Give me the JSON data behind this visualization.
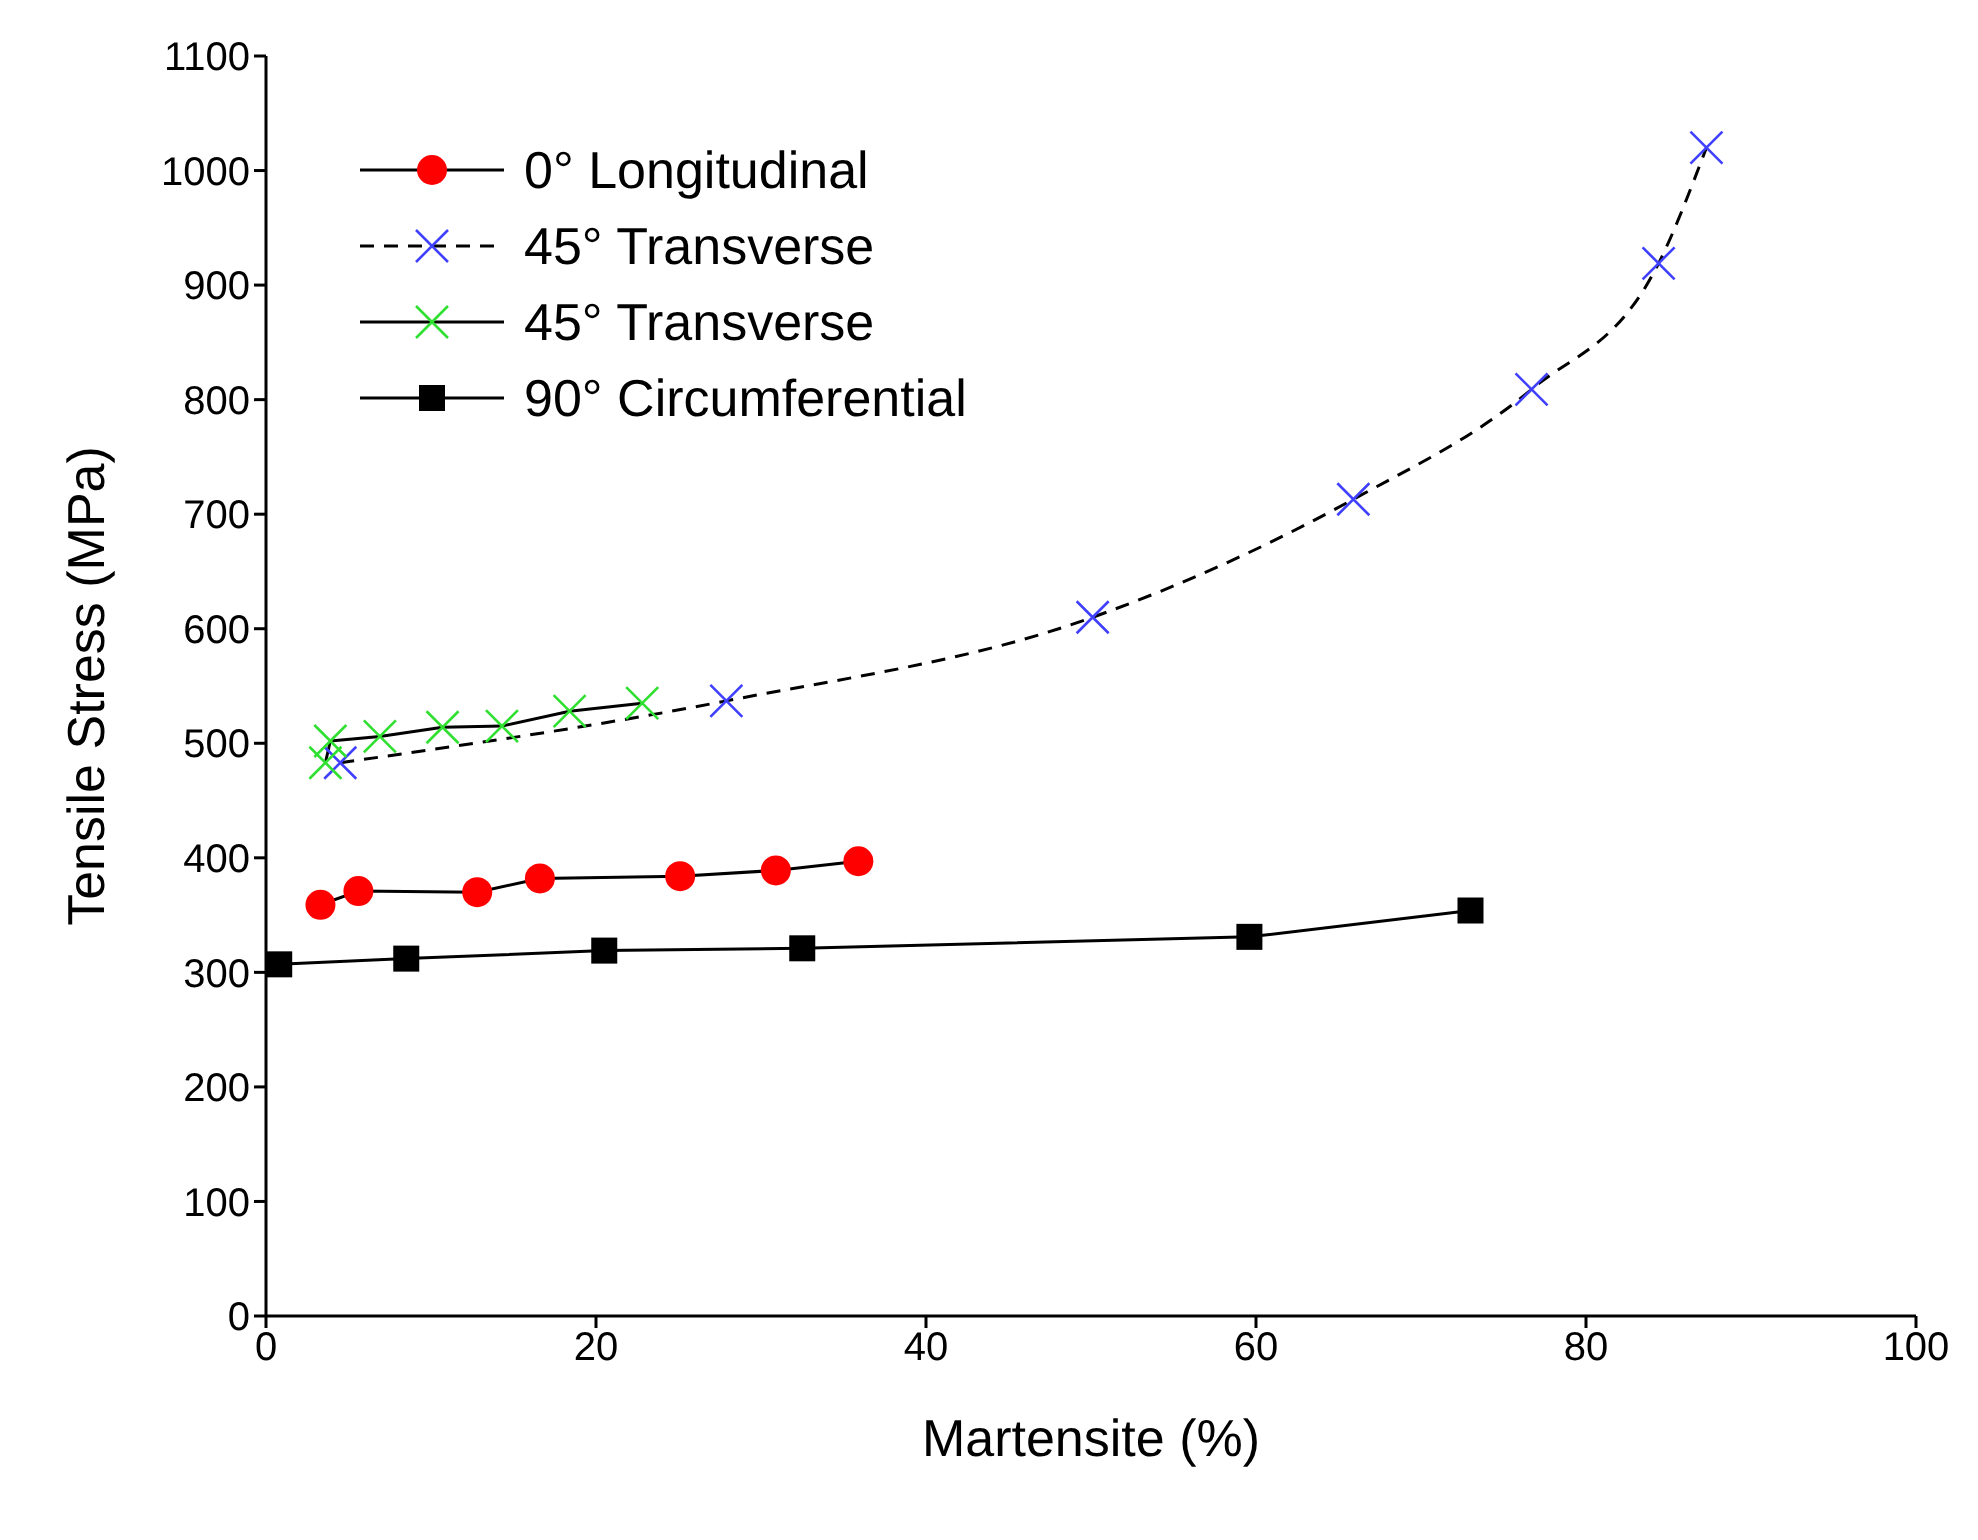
{
  "chart_data": {
    "type": "line",
    "xlabel": "Martensite (%)",
    "ylabel": "Tensile Stress (MPa)",
    "xlim": [
      0,
      100
    ],
    "xticks": [
      0,
      20,
      40,
      60,
      80,
      100
    ],
    "ylim": [
      0,
      1100
    ],
    "yticks": [
      0,
      100,
      200,
      300,
      400,
      500,
      600,
      700,
      800,
      900,
      1000,
      1100
    ],
    "grid": false,
    "legend": "top left",
    "series": [
      {
        "name": "0° Longitudinal",
        "color": "#ff0000",
        "marker": "circle",
        "line_style": "solid",
        "x": [
          3.3,
          5.6,
          12.8,
          16.6,
          25.1,
          30.9,
          35.9
        ],
        "values": [
          359,
          371,
          370,
          382,
          384,
          389,
          397
        ]
      },
      {
        "name": "45° Transverse",
        "color": "#4040ff",
        "marker": "cross",
        "line_style": "dashed",
        "x": [
          4.5,
          27.9,
          50.1,
          65.9,
          76.7,
          84.4,
          87.3
        ],
        "values": [
          483,
          537,
          610,
          713,
          809,
          919,
          1020
        ]
      },
      {
        "name": "45° Transverse",
        "color": "#30e030",
        "marker": "cross",
        "line_style": "solid",
        "x": [
          3.6,
          3.9,
          6.9,
          10.7,
          14.3,
          18.4,
          22.8
        ],
        "values": [
          483,
          502,
          506,
          514,
          515,
          528,
          535
        ]
      },
      {
        "name": "90° Circumferential",
        "color": "#000000",
        "marker": "square",
        "line_style": "solid",
        "x": [
          0.8,
          8.5,
          20.5,
          32.5,
          59.6,
          73
        ],
        "values": [
          307,
          312,
          319,
          321,
          331,
          354
        ]
      }
    ]
  }
}
